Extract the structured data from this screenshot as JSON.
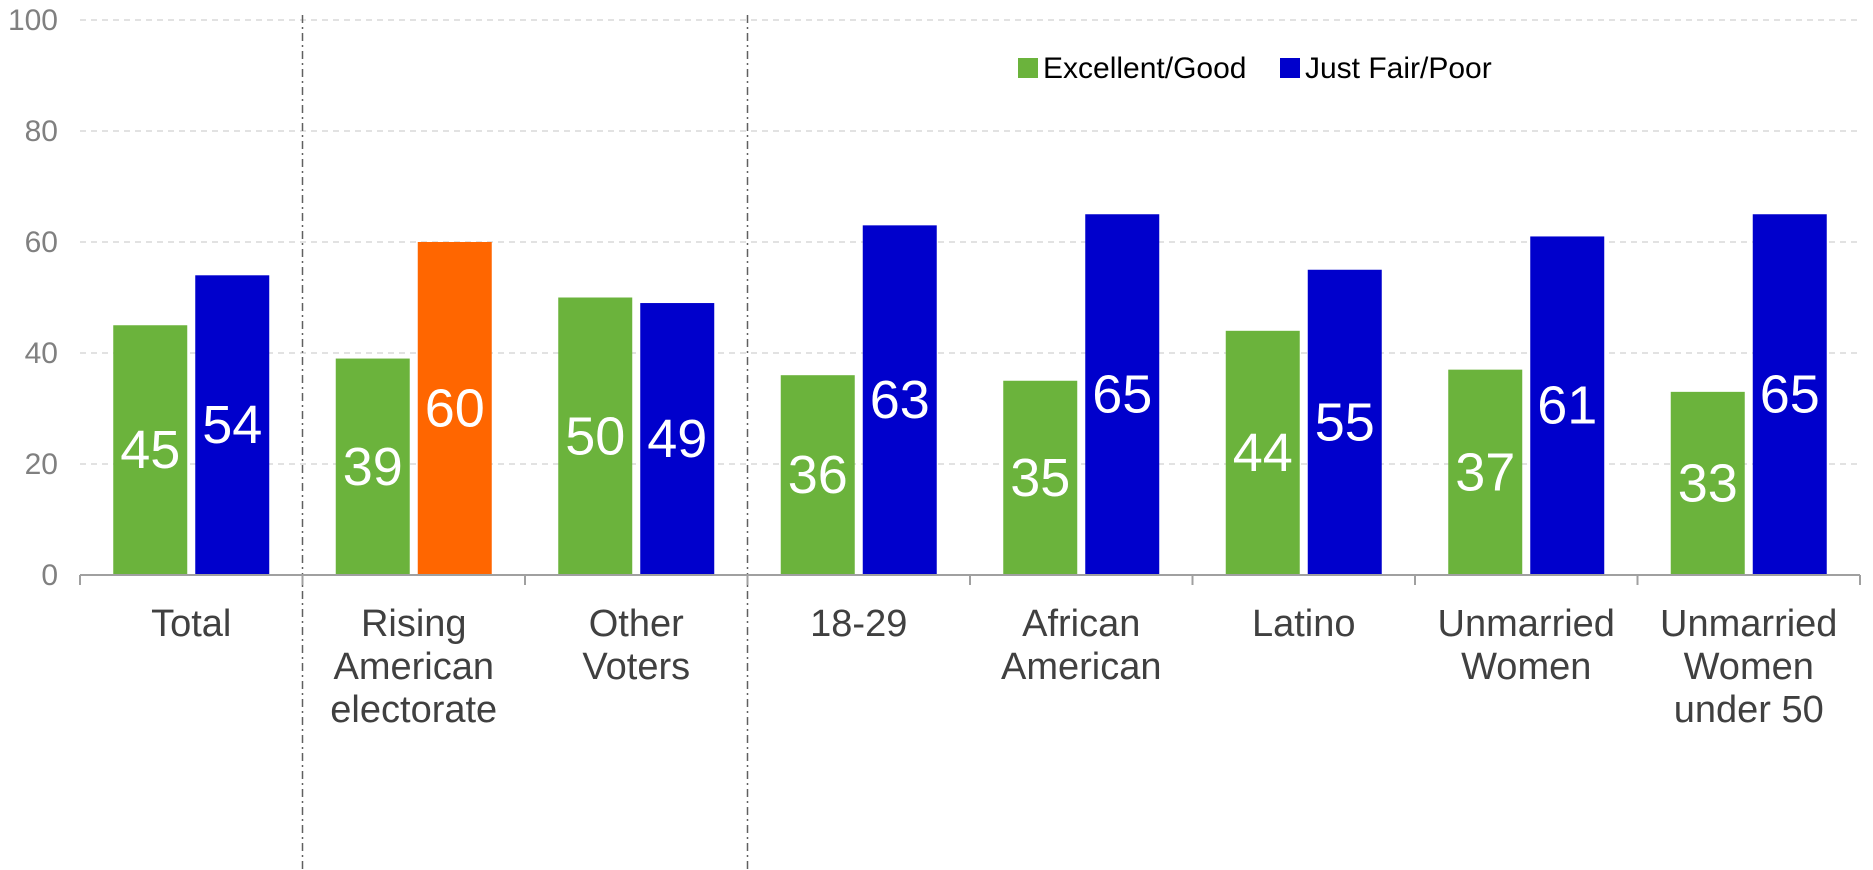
{
  "chart_data": {
    "type": "bar",
    "title": "",
    "xlabel": "",
    "ylabel": "",
    "ylim": [
      0,
      100
    ],
    "yticks": [
      0,
      20,
      40,
      60,
      80,
      100
    ],
    "grid": true,
    "legend_position": "top-right",
    "categories": [
      [
        "Total"
      ],
      [
        "Rising",
        "American",
        "electorate"
      ],
      [
        "Other",
        "Voters"
      ],
      [
        "18-29"
      ],
      [
        "African",
        "American"
      ],
      [
        "Latino"
      ],
      [
        "Unmarried",
        "Women"
      ],
      [
        "Unmarried",
        "Women",
        "under 50"
      ]
    ],
    "series": [
      {
        "name": "Excellent/Good",
        "color": "#6BB33C",
        "values": [
          45,
          39,
          50,
          36,
          35,
          44,
          37,
          33
        ]
      },
      {
        "name": "Just Fair/Poor",
        "color": "#0000CC",
        "highlight_color": "#FF6600",
        "highlight_index": 1,
        "values": [
          54,
          60,
          49,
          63,
          65,
          55,
          61,
          65
        ]
      }
    ],
    "group_separators_after": [
      0,
      2
    ]
  }
}
